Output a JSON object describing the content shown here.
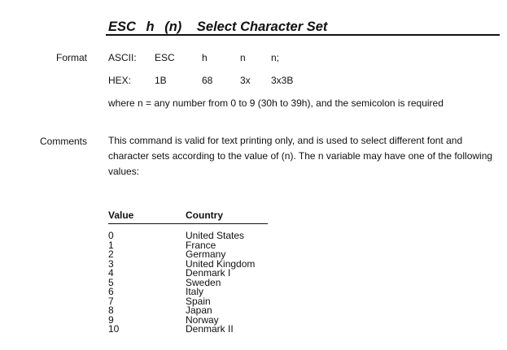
{
  "title": {
    "parts": [
      "ESC",
      "h",
      "(n)",
      "Select Character Set"
    ]
  },
  "format": {
    "label": "Format",
    "ascii": [
      "ASCII:",
      "ESC",
      "h",
      "n",
      "n;"
    ],
    "hex": [
      "HEX:",
      "1B",
      "68",
      "3x",
      "3x3B"
    ],
    "note": "where n = any number from 0 to 9 (30h to 39h), and the semicolon is required"
  },
  "comments": {
    "label": "Comments",
    "text": "This command is valid for text printing only, and is used to select different font and character sets according to the value of (n). The n variable may have one of the following values:"
  },
  "table": {
    "headers": [
      "Value",
      "Country"
    ],
    "rows": [
      [
        "0",
        "United States"
      ],
      [
        "1",
        "France"
      ],
      [
        "2",
        "Germany"
      ],
      [
        "3",
        "United Kingdom"
      ],
      [
        "4",
        "Denmark I"
      ],
      [
        "5",
        "Sweden"
      ],
      [
        "6",
        "Italy"
      ],
      [
        "7",
        "Spain"
      ],
      [
        "8",
        "Japan"
      ],
      [
        "9",
        "Norway"
      ],
      [
        "10",
        "Denmark II"
      ]
    ]
  }
}
